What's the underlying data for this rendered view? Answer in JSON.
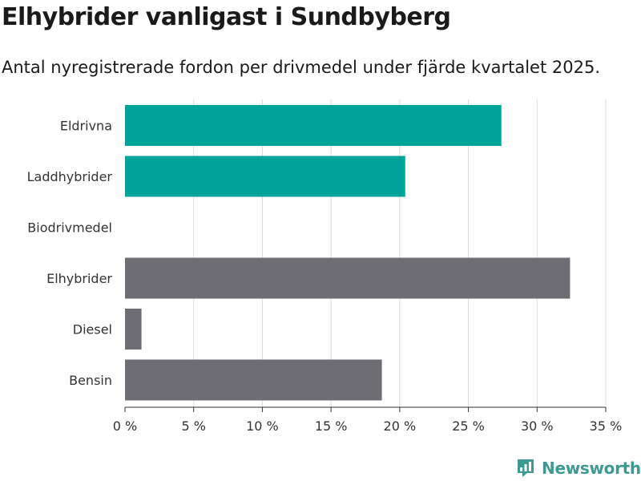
{
  "title": "Elhybrider vanligast i Sundbyberg",
  "subtitle": "Antal nyregistrerade fordon per drivmedel under fjärde kvartalet 2025.",
  "logo_text": "Newsworthy",
  "chart_data": {
    "type": "bar",
    "orientation": "horizontal",
    "categories": [
      "Eldrivna",
      "Laddhybrider",
      "Biodrivmedel",
      "Elhybrider",
      "Diesel",
      "Bensin"
    ],
    "values": [
      27.4,
      20.4,
      0,
      32.4,
      1.2,
      18.7
    ],
    "bar_colors": [
      "#00a398",
      "#00a398",
      "#00a398",
      "#6e6d73",
      "#6e6d73",
      "#6e6d73"
    ],
    "xlim": [
      0,
      35
    ],
    "xticks": [
      0,
      5,
      10,
      15,
      20,
      25,
      30,
      35
    ],
    "xtick_labels": [
      "0 %",
      "5 %",
      "10 %",
      "15 %",
      "20 %",
      "25 %",
      "30 %",
      "35 %"
    ],
    "grid": true
  }
}
